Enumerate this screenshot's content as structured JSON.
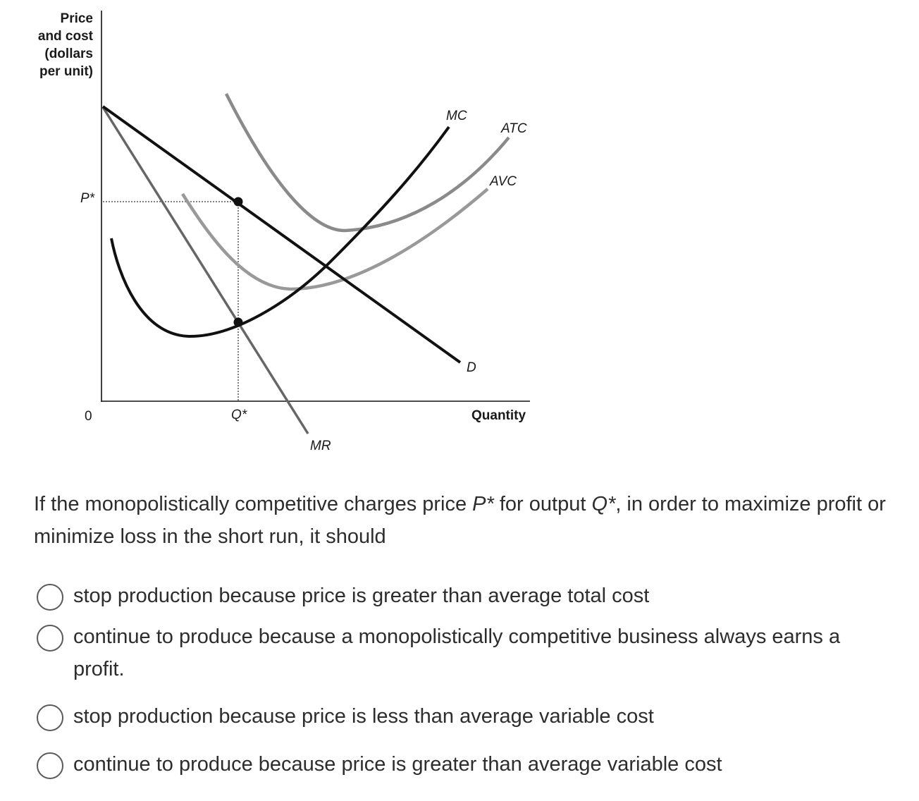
{
  "graph": {
    "y_axis_title": [
      "Price",
      "and cost",
      "(dollars",
      "per unit)"
    ],
    "x_axis_title": "Quantity",
    "origin": "0",
    "price_tick": "P*",
    "quantity_tick": "Q*",
    "curves": {
      "mc": "MC",
      "atc": "ATC",
      "avc": "AVC",
      "demand": "D",
      "mr": "MR"
    },
    "colors": {
      "dark": "#111111",
      "atc_gray": "#8a8a8a",
      "avc_gray": "#999999",
      "mr_gray": "#666666"
    }
  },
  "question": {
    "part1": "If the monopolistically competitive charges price ",
    "p_symbol": "P*",
    "part2": " for output ",
    "q_symbol": "Q*",
    "part3": ", in order to maximize profit or minimize loss in the short run, it should"
  },
  "options": [
    {
      "label": "stop production because price is greater than average total cost"
    },
    {
      "label": "continue to produce because a monopolistically competitive business always earns a profit."
    },
    {
      "label": "stop production because price is less than average variable cost"
    },
    {
      "label": "continue to produce because price is greater than average variable cost"
    }
  ]
}
